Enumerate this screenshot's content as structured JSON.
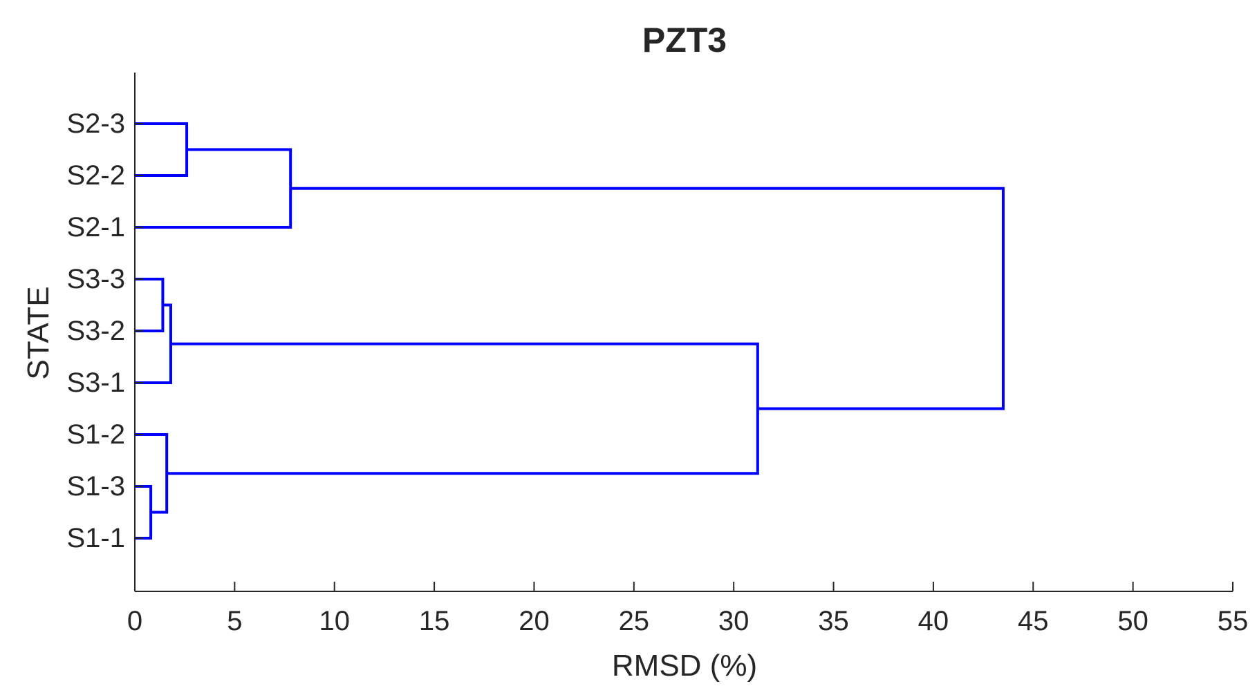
{
  "chart_data": {
    "type": "dendrogram",
    "title": "PZT3",
    "xlabel": "RMSD (%)",
    "ylabel": "STATE",
    "xlim": [
      0,
      55
    ],
    "xticks": [
      0,
      5,
      10,
      15,
      20,
      25,
      30,
      35,
      40,
      45,
      50,
      55
    ],
    "leaves": [
      "S2-3",
      "S2-2",
      "S2-1",
      "S3-3",
      "S3-2",
      "S3-1",
      "S1-2",
      "S1-3",
      "S1-1"
    ],
    "merges": [
      {
        "children": [
          "S1-3",
          "S1-1"
        ],
        "height": 0.8
      },
      {
        "children": [
          "S3-3",
          "S3-2"
        ],
        "height": 1.4
      },
      {
        "children": [
          "S1-2",
          "S1-3|S1-1"
        ],
        "height": 1.6
      },
      {
        "children": [
          "S3-3|S3-2",
          "S3-1"
        ],
        "height": 1.8
      },
      {
        "children": [
          "S2-3",
          "S2-2"
        ],
        "height": 2.6
      },
      {
        "children": [
          "S2-3|S2-2",
          "S2-1"
        ],
        "height": 7.8
      },
      {
        "children": [
          "S3-3|S3-2|S3-1",
          "S1-2|S1-3|S1-1"
        ],
        "height": 31.2
      },
      {
        "children": [
          "S2-3|S2-2|S2-1",
          "S3-3|S3-2|S3-1|S1-2|S1-3|S1-1"
        ],
        "height": 43.5
      }
    ],
    "line_color": "#0000ff",
    "grid": false
  }
}
